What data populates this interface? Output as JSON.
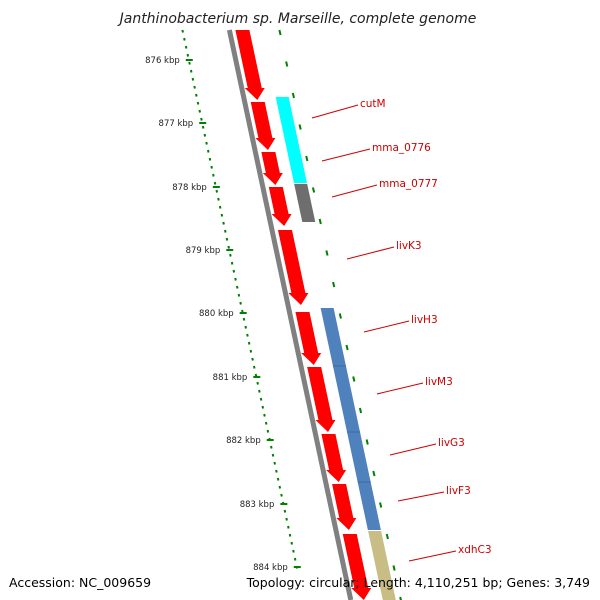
{
  "title": "Janthinobacterium sp. Marseille, complete genome",
  "accession": "Accession: NC_009659",
  "summary": "Topology: circular; Length: 4,110,251 bp; Genes: 3,749",
  "ruler": {
    "unit": "kbp",
    "ticks": [
      "876 kbp",
      "877 kbp",
      "878 kbp",
      "879 kbp",
      "880 kbp",
      "881 kbp",
      "882 kbp",
      "883 kbp",
      "884 kbp"
    ]
  },
  "colors": {
    "cds_forward": "#ff0000",
    "backbone": "#808080",
    "ruler": "#008000",
    "label": "#cc0000",
    "cyan_feature": "#00ffff",
    "grey_feature": "#6e6e6e",
    "blue_feature": "#4f81bd",
    "khaki_feature": "#c8bd84"
  },
  "genes": [
    {
      "label": "cutM",
      "color": "cyan"
    },
    {
      "label": "mma_0776",
      "color": "cyan"
    },
    {
      "label": "mma_0777",
      "color": "grey"
    },
    {
      "label": "livK3",
      "color": "red"
    },
    {
      "label": "livH3",
      "color": "blue"
    },
    {
      "label": "livM3",
      "color": "blue"
    },
    {
      "label": "livG3",
      "color": "blue"
    },
    {
      "label": "livF3",
      "color": "blue"
    },
    {
      "label": "xdhC3",
      "color": "khaki"
    }
  ]
}
